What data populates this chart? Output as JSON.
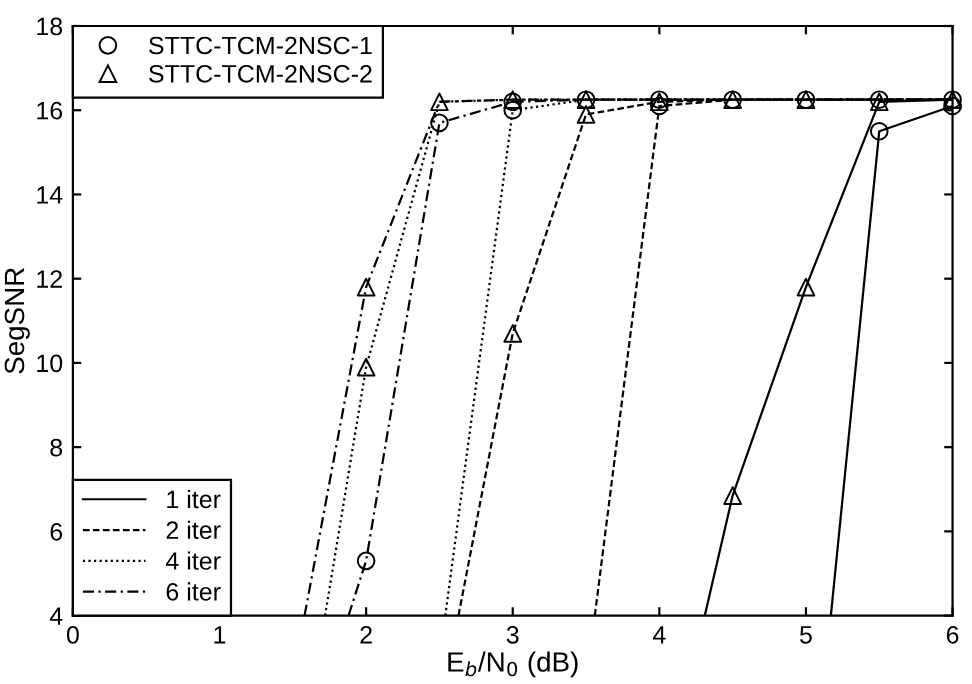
{
  "chart_data": {
    "type": "line",
    "xlabel": "E$_{b}$/N$_{0}$ (dB)",
    "ylabel": "SegSNR",
    "xlim": [
      0,
      6
    ],
    "ylim": [
      4,
      18
    ],
    "xticks": [
      0,
      1,
      2,
      3,
      4,
      5,
      6
    ],
    "yticks": [
      4,
      6,
      8,
      10,
      12,
      14,
      16,
      18
    ],
    "grid": false,
    "legend": "left",
    "series": [
      {
        "name": "1 iter",
        "color": "#000000",
        "line_style": "solid",
        "x": [
          5.17,
          5.5,
          6
        ],
        "values": [
          4,
          15.5,
          16.1
        ]
      },
      {
        "name": "2 iter",
        "color": "#000000",
        "line_style": "dashed",
        "x": [
          3.56,
          4,
          4.5,
          5,
          5.5,
          6
        ],
        "values": [
          4,
          16.1,
          16.25,
          16.25,
          16.25,
          16.25
        ]
      },
      {
        "name": "4 iter",
        "color": "#000000",
        "line_style": "dotted",
        "x": [
          2.54,
          3,
          3.5,
          4,
          4.5,
          5,
          5.5,
          6
        ],
        "values": [
          4,
          16.0,
          16.25,
          16.25,
          16.25,
          16.25,
          16.25,
          16.25
        ]
      },
      {
        "name": "6 iter",
        "color": "#000000",
        "line_style": "dashdot",
        "x": [
          1.88,
          2,
          2.5,
          3,
          3.5,
          4,
          4.5,
          5,
          5.5,
          6
        ],
        "values": [
          4,
          5.3,
          15.7,
          16.2,
          16.25,
          16.25,
          16.25,
          16.25,
          16.25,
          16.25
        ]
      },
      {
        "color": "#000000",
        "line_style": "solid",
        "x": [
          4.31,
          4.5,
          5,
          5.5,
          6
        ],
        "values": [
          4,
          6.85,
          11.8,
          16.2,
          16.25
        ]
      },
      {
        "color": "#000000",
        "line_style": "dashed",
        "x": [
          2.63,
          3,
          3.5,
          4,
          4.5,
          5,
          5.5,
          6
        ],
        "values": [
          4,
          10.7,
          15.9,
          16.2,
          16.25,
          16.25,
          16.25,
          16.25
        ]
      },
      {
        "color": "#000000",
        "line_style": "dotted",
        "x": [
          1.72,
          2,
          2.5,
          3,
          3.5,
          4,
          4.5,
          5,
          5.5,
          6
        ],
        "values": [
          4,
          9.9,
          16.2,
          16.25,
          16.25,
          16.25,
          16.25,
          16.25,
          16.25,
          16.25
        ]
      },
      {
        "color": "#000000",
        "line_style": "dashdot",
        "x": [
          1.58,
          2,
          2.5,
          3,
          3.5,
          4,
          4.5,
          5,
          5.5,
          6
        ],
        "values": [
          4,
          11.8,
          16.2,
          16.25,
          16.25,
          16.25,
          16.25,
          16.25,
          16.25,
          16.25
        ]
      },
      {
        "name": "STTC-TCM-2NSC-1",
        "type": "scatter",
        "marker": "circle",
        "color": "#000000",
        "x": [
          5.5,
          6,
          4,
          4.5,
          5,
          5.5,
          6,
          3,
          3.5,
          4,
          2,
          2.5,
          3
        ],
        "values": [
          15.5,
          16.1,
          16.1,
          16.25,
          16.25,
          16.25,
          16.25,
          16.0,
          16.25,
          16.25,
          5.3,
          15.7,
          16.2
        ]
      },
      {
        "name": "STTC-TCM-2NSC-2",
        "type": "scatter",
        "marker": "triangle",
        "color": "#000000",
        "x": [
          4.5,
          5,
          5.5,
          6,
          3,
          3.5,
          4,
          4.5,
          5,
          2,
          2.5,
          3,
          3.5,
          2
        ],
        "values": [
          6.85,
          11.8,
          16.2,
          16.25,
          10.7,
          15.9,
          16.2,
          16.25,
          16.25,
          9.9,
          16.2,
          16.25,
          16.25,
          11.8
        ]
      }
    ]
  }
}
